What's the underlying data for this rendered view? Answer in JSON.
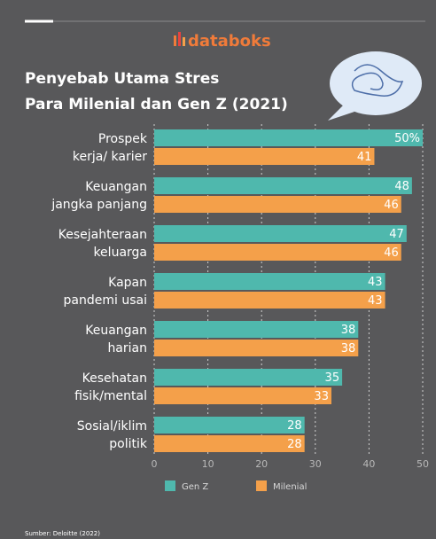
{
  "logo": "databoks",
  "chart_data": {
    "type": "hbar",
    "title": [
      "Penyebab Utama Stres",
      "Para Milenial dan Gen Z (2021)"
    ],
    "categories": [
      [
        "Prospek",
        "kerja/ karier"
      ],
      [
        "Keuangan",
        "jangka panjang"
      ],
      [
        "Kesejahteraan",
        "keluarga"
      ],
      [
        "Kapan",
        "pandemi usai"
      ],
      [
        "Keuangan",
        "harian"
      ],
      [
        "Kesehatan",
        "fisik/mental"
      ],
      [
        "Sosial/iklim",
        "politik"
      ]
    ],
    "series": [
      {
        "name": "Gen Z",
        "color": "#4fb8ad",
        "values": [
          50,
          48,
          47,
          43,
          38,
          35,
          28
        ],
        "value_labels": [
          "50%",
          "48",
          "47",
          "43",
          "38",
          "35",
          "28"
        ]
      },
      {
        "name": "Milenial",
        "color": "#f4a04a",
        "values": [
          41,
          46,
          46,
          43,
          38,
          33,
          28
        ]
      }
    ],
    "xlim": [
      0,
      50
    ],
    "xticks": [
      0,
      10,
      20,
      30,
      40,
      50
    ],
    "grid": true,
    "source": "Sumber: Deloitte (2022)"
  }
}
